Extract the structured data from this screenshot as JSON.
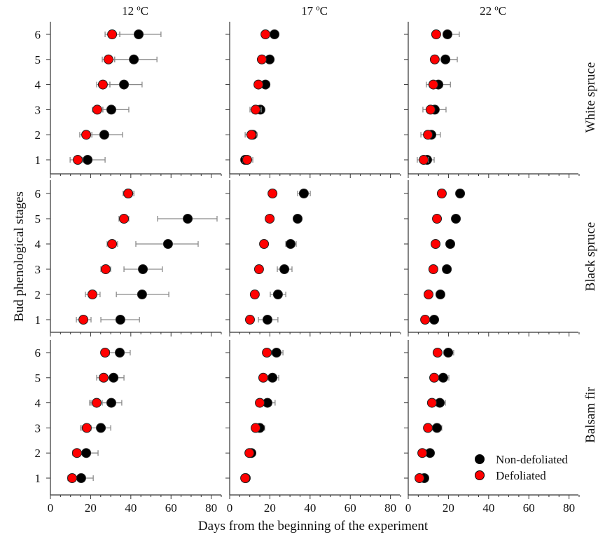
{
  "chart_data": {
    "type": "scatter",
    "title": "",
    "xlabel": "Days from the beginning of the experiment",
    "ylabel": "Bud phenological stages",
    "xlim": [
      0,
      85
    ],
    "ylim": [
      0.5,
      6.5
    ],
    "x_ticks": [
      0,
      20,
      40,
      60,
      80
    ],
    "y_ticks": [
      1,
      2,
      3,
      4,
      5,
      6
    ],
    "grid": false,
    "columns": [
      "12 ºC",
      "17 ºC",
      "22 ºC"
    ],
    "rows": [
      "White spruce",
      "Black spruce",
      "Balsam fir"
    ],
    "legend": {
      "placement": "bottom-right of last panel",
      "entries": [
        {
          "name": "Non-defoliated",
          "color": "#000000"
        },
        {
          "name": "Defoliated",
          "color": "#ff0000"
        }
      ]
    },
    "stages": [
      1,
      2,
      3,
      4,
      5,
      6
    ],
    "panels": [
      {
        "row": "White spruce",
        "col": "12 ºC",
        "series": [
          {
            "name": "Non-defoliated",
            "x": [
              18.5,
              26.8,
              30.3,
              36.6,
              41.5,
              43.9
            ],
            "lo": [
              16.0,
              20.6,
              26.1,
              29.6,
              32.0,
              34.5
            ],
            "hi": [
              27.2,
              35.9,
              39.0,
              45.6,
              53.0,
              55.0
            ]
          },
          {
            "name": "Defoliated",
            "x": [
              13.6,
              17.8,
              23.3,
              26.1,
              28.9,
              30.7
            ],
            "lo": [
              9.8,
              14.6,
              20.9,
              23.0,
              25.8,
              27.2
            ],
            "hi": [
              16.0,
              20.6,
              26.1,
              29.6,
              32.0,
              34.5
            ]
          }
        ]
      },
      {
        "row": "White spruce",
        "col": "17 ºC",
        "series": [
          {
            "name": "Non-defoliated",
            "x": [
              7.7,
              11.5,
              15.3,
              17.8,
              19.9,
              22.3
            ],
            "lo": [
              6.3,
              10.1,
              13.9,
              16.4,
              18.5,
              20.9
            ],
            "hi": [
              9.1,
              12.9,
              16.7,
              19.2,
              21.3,
              23.7
            ]
          },
          {
            "name": "Defoliated",
            "x": [
              8.7,
              10.8,
              12.9,
              14.3,
              16.0,
              17.8
            ],
            "lo": [
              6.6,
              7.7,
              10.1,
              13.2,
              14.6,
              16.4
            ],
            "hi": [
              11.5,
              13.6,
              15.7,
              15.7,
              17.4,
              19.2
            ]
          }
        ]
      },
      {
        "row": "White spruce",
        "col": "22 ºC",
        "series": [
          {
            "name": "Non-defoliated",
            "x": [
              9.4,
              11.5,
              13.2,
              15.0,
              18.5,
              19.5
            ],
            "lo": [
              7.7,
              9.8,
              11.1,
              13.2,
              16.7,
              17.8
            ],
            "hi": [
              12.9,
              16.0,
              18.8,
              21.0,
              24.4,
              25.4
            ]
          },
          {
            "name": "Defoliated",
            "x": [
              7.7,
              9.8,
              11.1,
              12.5,
              13.2,
              13.9
            ],
            "lo": [
              4.5,
              6.3,
              7.3,
              9.0,
              12.2,
              12.9
            ],
            "hi": [
              10.1,
              11.5,
              12.9,
              14.3,
              14.3,
              14.9
            ]
          }
        ]
      },
      {
        "row": "Black spruce",
        "col": "12 ºC",
        "series": [
          {
            "name": "Non-defoliated",
            "x": [
              34.8,
              45.6,
              46.0,
              58.5,
              68.3,
              38.7
            ],
            "lo": [
              25.1,
              32.8,
              36.6,
              42.5,
              53.3,
              36.2
            ],
            "hi": [
              44.3,
              58.9,
              55.7,
              73.5,
              82.9,
              41.5
            ]
          },
          {
            "name": "Defoliated",
            "x": [
              16.4,
              20.9,
              27.5,
              30.7,
              36.6,
              38.7
            ],
            "lo": [
              12.9,
              17.4,
              25.1,
              28.2,
              34.1,
              36.2
            ],
            "hi": [
              20.2,
              24.7,
              30.0,
              33.4,
              39.0,
              41.5
            ]
          }
        ]
      },
      {
        "row": "Black spruce",
        "col": "17 ºC",
        "series": [
          {
            "name": "Non-defoliated",
            "x": [
              18.8,
              24.0,
              27.2,
              30.3,
              33.8,
              36.9
            ],
            "lo": [
              14.3,
              20.2,
              23.7,
              27.9,
              32.8,
              33.8
            ],
            "hi": [
              24.0,
              27.9,
              31.0,
              33.1,
              34.8,
              40.1
            ]
          },
          {
            "name": "Defoliated",
            "x": [
              10.1,
              12.5,
              14.6,
              17.1,
              19.9,
              21.3
            ],
            "lo": [
              9.4,
              11.8,
              13.9,
              16.4,
              19.2,
              20.6
            ],
            "hi": [
              10.8,
              13.2,
              15.3,
              17.8,
              20.6,
              22.0
            ]
          }
        ]
      },
      {
        "row": "Black spruce",
        "col": "22 ºC",
        "series": [
          {
            "name": "Non-defoliated",
            "x": [
              12.9,
              16.0,
              19.2,
              20.9,
              23.7,
              25.8
            ],
            "lo": [
              12.2,
              15.3,
              18.5,
              20.2,
              23.0,
              25.1
            ],
            "hi": [
              13.6,
              16.7,
              19.9,
              21.6,
              24.4,
              26.5
            ]
          },
          {
            "name": "Defoliated",
            "x": [
              8.4,
              10.1,
              12.5,
              13.6,
              14.3,
              16.7
            ],
            "lo": [
              7.7,
              9.4,
              11.8,
              12.9,
              13.6,
              16.0
            ],
            "hi": [
              9.1,
              10.8,
              13.2,
              14.3,
              15.0,
              17.4
            ]
          }
        ]
      },
      {
        "row": "Balsam fir",
        "col": "12 ºC",
        "series": [
          {
            "name": "Non-defoliated",
            "x": [
              15.3,
              17.8,
              25.1,
              30.3,
              31.4,
              34.5
            ],
            "lo": [
              8.7,
              11.1,
              15.0,
              19.5,
              23.0,
              29.3
            ],
            "hi": [
              21.3,
              23.7,
              30.0,
              35.5,
              36.6,
              39.7
            ]
          },
          {
            "name": "Defoliated",
            "x": [
              10.8,
              13.2,
              18.1,
              23.0,
              26.5,
              27.2
            ],
            "lo": [
              9.4,
              11.8,
              15.7,
              20.2,
              24.4,
              25.4
            ],
            "hi": [
              12.2,
              14.6,
              20.2,
              25.8,
              28.2,
              29.3
            ]
          }
        ]
      },
      {
        "row": "Balsam fir",
        "col": "17 ºC",
        "series": [
          {
            "name": "Non-defoliated",
            "x": [
              8.0,
              10.8,
              15.0,
              18.8,
              21.3,
              23.3
            ],
            "lo": [
              7.0,
              9.8,
              13.9,
              17.1,
              19.2,
              20.9
            ],
            "hi": [
              9.4,
              11.8,
              17.4,
              22.6,
              24.4,
              26.5
            ]
          },
          {
            "name": "Defoliated",
            "x": [
              7.7,
              9.8,
              12.9,
              15.0,
              16.7,
              18.5
            ],
            "lo": [
              6.3,
              8.7,
              11.8,
              13.9,
              15.7,
              16.7
            ],
            "hi": [
              9.1,
              10.8,
              13.9,
              16.0,
              17.8,
              20.2
            ]
          }
        ]
      },
      {
        "row": "Balsam fir",
        "col": "22 ºC",
        "series": [
          {
            "name": "Non-defoliated",
            "x": [
              8.0,
              10.8,
              14.3,
              15.7,
              17.4,
              19.9
            ],
            "lo": [
              7.3,
              10.1,
              12.2,
              13.6,
              15.3,
              17.8
            ],
            "hi": [
              8.7,
              11.5,
              16.7,
              18.5,
              20.2,
              22.6
            ]
          },
          {
            "name": "Defoliated",
            "x": [
              5.6,
              7.0,
              9.8,
              11.8,
              12.9,
              14.6
            ],
            "lo": [
              4.9,
              6.3,
              9.1,
              11.1,
              12.2,
              13.9
            ],
            "hi": [
              6.3,
              7.7,
              10.5,
              12.5,
              13.6,
              15.3
            ]
          }
        ]
      }
    ]
  }
}
